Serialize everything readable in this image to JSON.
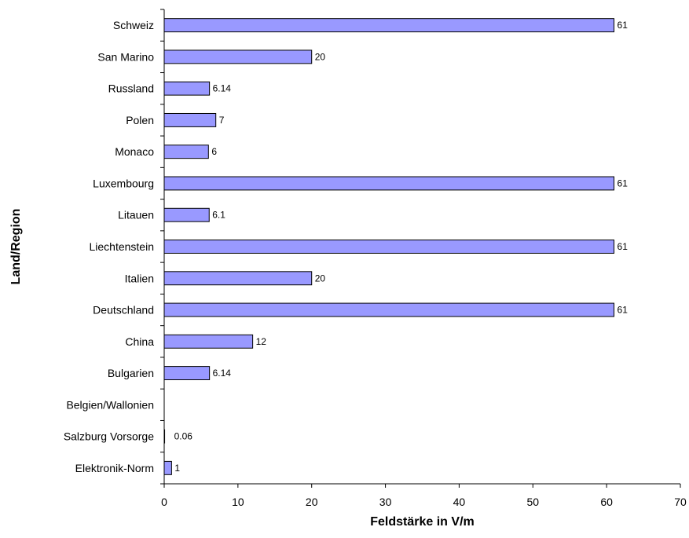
{
  "chart_data": {
    "type": "bar",
    "orientation": "horizontal",
    "title": "",
    "xlabel": "Feldstärke in V/m",
    "ylabel": "Land/Region",
    "xlim": [
      0,
      70
    ],
    "xticks": [
      0,
      10,
      20,
      30,
      40,
      50,
      60,
      70
    ],
    "grid": false,
    "legend": "none",
    "bar_color": "#9999ff",
    "categories": [
      "Schweiz",
      "San Marino",
      "Russland",
      "Polen",
      "Monaco",
      "Luxembourg",
      "Litauen",
      "Liechtenstein",
      "Italien",
      "Deutschland",
      "China",
      "Bulgarien",
      "Belgien/Wallonien",
      "Salzburg Vorsorge",
      "Elektronik-Norm"
    ],
    "values": [
      61,
      20,
      6.14,
      7,
      6,
      61,
      6.1,
      61,
      20,
      61,
      12,
      6.14,
      null,
      0.06,
      1
    ],
    "data_labels": [
      "61",
      "20",
      "6.14",
      "7",
      "6",
      "61",
      "6.1",
      "61",
      "20",
      "61",
      "12",
      "6.14",
      "",
      "0.06",
      "1"
    ]
  }
}
